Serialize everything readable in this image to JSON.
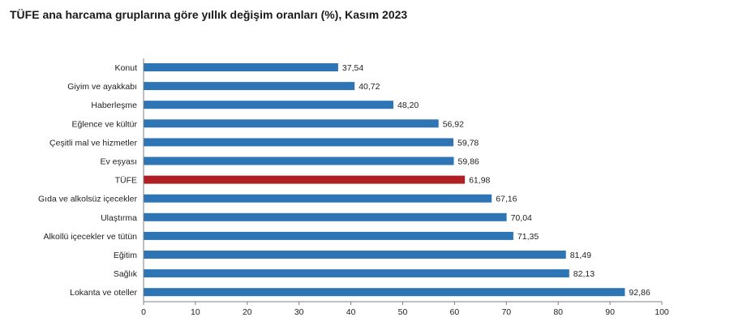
{
  "chart_data": {
    "type": "bar",
    "orientation": "horizontal",
    "title": "TÜFE ana harcama gruplarına göre yıllık değişim oranları (%), Kasım 2023",
    "categories": [
      "Konut",
      "Giyim ve ayakkabı",
      "Haberleşme",
      "Eğlence ve kültür",
      "Çeşitli mal ve hizmetler",
      "Ev eşyası",
      "TÜFE",
      "Gıda ve alkolsüz içecekler",
      "Ulaştırma",
      "Alkollü içecekler ve tütün",
      "Eğitim",
      "Sağlık",
      "Lokanta ve oteller"
    ],
    "values": [
      37.54,
      40.72,
      48.2,
      56.92,
      59.78,
      59.86,
      61.98,
      67.16,
      70.04,
      71.35,
      81.49,
      82.13,
      92.86
    ],
    "value_labels": [
      "37,54",
      "40,72",
      "48,20",
      "56,92",
      "59,78",
      "59,86",
      "61,98",
      "67,16",
      "70,04",
      "71,35",
      "81,49",
      "82,13",
      "92,86"
    ],
    "highlight_category": "TÜFE",
    "xlim": [
      0,
      100
    ],
    "xticks": [
      0,
      10,
      20,
      30,
      40,
      50,
      60,
      70,
      80,
      90,
      100
    ],
    "xtick_labels": [
      "0",
      "10",
      "20",
      "30",
      "40",
      "50",
      "60",
      "70",
      "80",
      "90",
      "100"
    ],
    "xlabel": "",
    "ylabel": "",
    "grid": false,
    "legend": "none",
    "colors": {
      "bar": "#2e75b6",
      "highlight_bar": "#b01f24",
      "axis": "#7f7f7f",
      "text": "#222222"
    }
  }
}
